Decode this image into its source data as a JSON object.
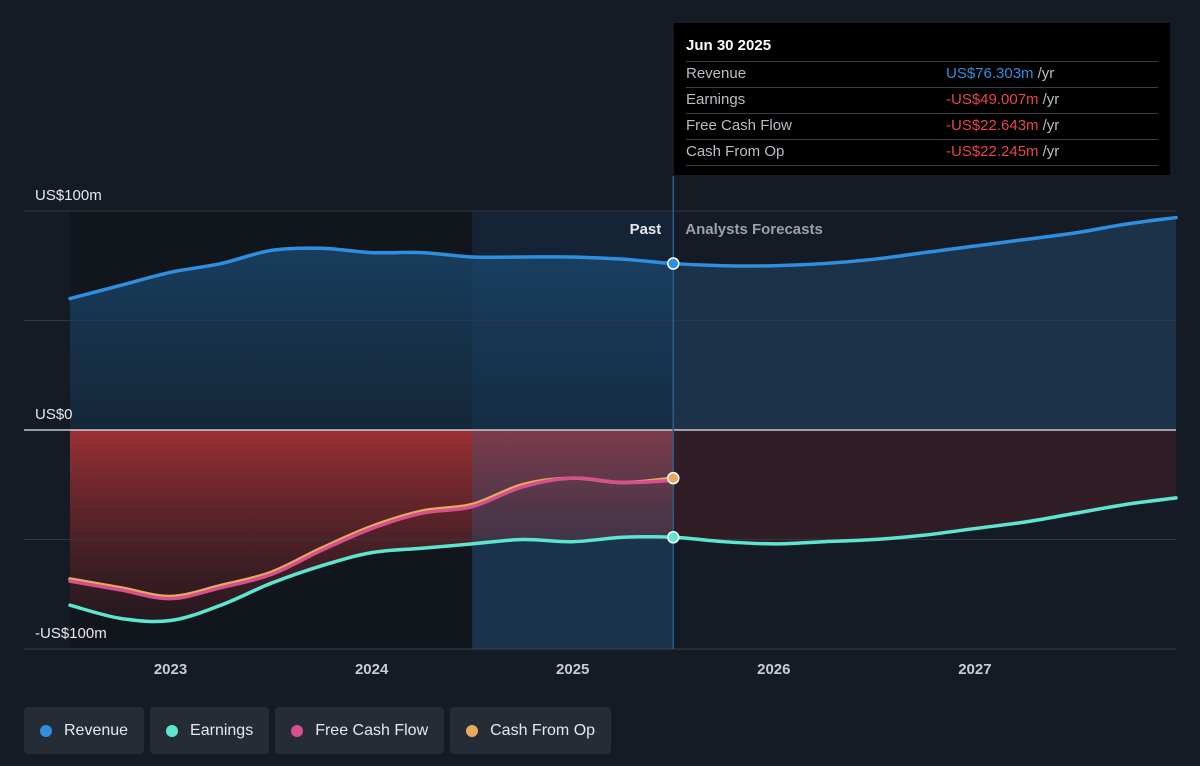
{
  "chart_data": {
    "type": "area",
    "y_axis": {
      "ticks": [
        "US$100m",
        "US$0",
        "-US$100m"
      ],
      "ylim": [
        -100,
        100
      ]
    },
    "x_axis": {
      "ticks": [
        "2023",
        "2024",
        "2025",
        "2026",
        "2027"
      ],
      "xlim": [
        2022.5,
        2028.0
      ]
    },
    "regions": {
      "past_label": "Past",
      "forecast_label": "Analysts Forecasts",
      "divider_x": 2025.5
    },
    "series": [
      {
        "name": "Revenue",
        "color": "#2e8fe0",
        "x": [
          2022.5,
          2022.75,
          2023.0,
          2023.25,
          2023.5,
          2023.75,
          2024.0,
          2024.25,
          2024.5,
          2024.75,
          2025.0,
          2025.25,
          2025.5,
          2025.75,
          2026.0,
          2026.25,
          2026.5,
          2026.75,
          2027.0,
          2027.25,
          2027.5,
          2027.75,
          2028.0
        ],
        "values": [
          60,
          66,
          72,
          76,
          82,
          83,
          81,
          81,
          79,
          79,
          79,
          78,
          76,
          75,
          75,
          76,
          78,
          81,
          84,
          87,
          90,
          94,
          97
        ]
      },
      {
        "name": "Earnings",
        "color": "#5ce6cf",
        "x": [
          2022.5,
          2022.75,
          2023.0,
          2023.25,
          2023.5,
          2023.75,
          2024.0,
          2024.25,
          2024.5,
          2024.75,
          2025.0,
          2025.25,
          2025.5,
          2025.75,
          2026.0,
          2026.25,
          2026.5,
          2026.75,
          2027.0,
          2027.25,
          2027.5,
          2027.75,
          2028.0
        ],
        "values": [
          -80,
          -86,
          -87,
          -80,
          -70,
          -62,
          -56,
          -54,
          -52,
          -50,
          -51,
          -49,
          -49,
          -51,
          -52,
          -51,
          -50,
          -48,
          -45,
          -42,
          -38,
          -34,
          -31
        ]
      },
      {
        "name": "Free Cash Flow",
        "color": "#d6508f",
        "x": [
          2022.5,
          2022.75,
          2023.0,
          2023.25,
          2023.5,
          2023.75,
          2024.0,
          2024.25,
          2024.5,
          2024.75,
          2025.0,
          2025.25,
          2025.5
        ],
        "values": [
          -69,
          -73,
          -77,
          -72,
          -66,
          -55,
          -45,
          -38,
          -35,
          -26,
          -22,
          -24,
          -23
        ]
      },
      {
        "name": "Cash From Op",
        "color": "#e8a95c",
        "x": [
          2022.5,
          2022.75,
          2023.0,
          2023.25,
          2023.5,
          2023.75,
          2024.0,
          2024.25,
          2024.5,
          2024.75,
          2025.0,
          2025.25,
          2025.5
        ],
        "values": [
          -68,
          -72,
          -76,
          -71,
          -65,
          -54,
          -44,
          -37,
          -34,
          -25,
          -22,
          -24,
          -22
        ]
      }
    ],
    "legend": [
      "Revenue",
      "Earnings",
      "Free Cash Flow",
      "Cash From Op"
    ]
  },
  "tooltip": {
    "date": "Jun 30 2025",
    "rows": [
      {
        "label": "Revenue",
        "value": "US$76.303m",
        "unit": "/yr",
        "color": "#2e8fe0"
      },
      {
        "label": "Earnings",
        "value": "-US$49.007m",
        "unit": "/yr",
        "color": "#e5454f"
      },
      {
        "label": "Free Cash Flow",
        "value": "-US$22.643m",
        "unit": "/yr",
        "color": "#e5454f"
      },
      {
        "label": "Cash From Op",
        "value": "-US$22.245m",
        "unit": "/yr",
        "color": "#e5454f"
      }
    ]
  }
}
